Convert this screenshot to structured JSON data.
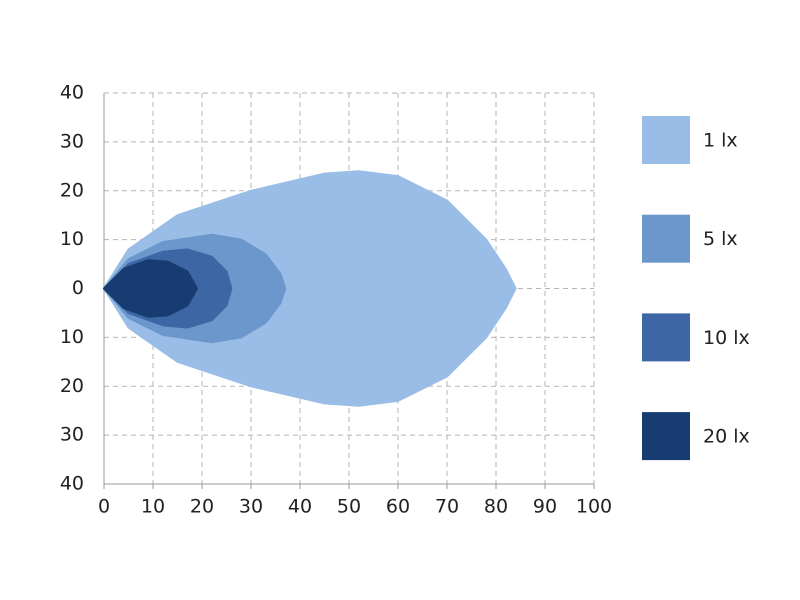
{
  "chart_data": {
    "type": "isolux",
    "xlim": [
      0,
      100
    ],
    "xticks": [
      0,
      10,
      20,
      30,
      40,
      50,
      60,
      70,
      80,
      90,
      100
    ],
    "ylim": [
      -40,
      40
    ],
    "yticks": [
      {
        "value": -40,
        "label": "40"
      },
      {
        "value": -30,
        "label": "30"
      },
      {
        "value": -20,
        "label": "20"
      },
      {
        "value": -10,
        "label": "10"
      },
      0,
      10,
      20,
      30,
      40
    ],
    "grid": true,
    "legend": "right",
    "series": [
      {
        "name": "1 lx",
        "color": "#99bde6",
        "x": [
          0,
          5,
          15,
          30,
          45,
          52,
          60,
          70,
          78,
          82,
          84,
          82,
          78,
          70,
          60,
          52,
          45,
          30,
          15,
          5,
          0
        ],
        "values": [
          0,
          8,
          15,
          20,
          23.5,
          24,
          23,
          18,
          10,
          4,
          0,
          -4,
          -10,
          -18,
          -23,
          -24,
          -23.5,
          -20,
          -15,
          -8,
          0
        ]
      },
      {
        "name": "5 lx",
        "color": "#6b97cc",
        "x": [
          0,
          5,
          12,
          22,
          28,
          33,
          36,
          37,
          36,
          33,
          28,
          22,
          12,
          5,
          0
        ],
        "values": [
          0,
          6,
          9.5,
          11,
          10,
          7,
          3,
          0,
          -3,
          -7,
          -10,
          -11,
          -9.5,
          -6,
          0
        ]
      },
      {
        "name": "10 lx",
        "color": "#3d67a4",
        "x": [
          0,
          5,
          12,
          17,
          22,
          25,
          26,
          25,
          22,
          17,
          12,
          5,
          0
        ],
        "values": [
          0,
          5,
          7.5,
          8,
          6.5,
          3.5,
          0,
          -3.5,
          -6.5,
          -8,
          -7.5,
          -5,
          0
        ]
      },
      {
        "name": "20 lx",
        "color": "#173c72",
        "x": [
          0,
          4,
          9,
          13,
          17,
          19,
          17,
          13,
          9,
          4,
          0
        ],
        "values": [
          0,
          4,
          5.8,
          5.5,
          3.5,
          0,
          -3.5,
          -5.5,
          -5.8,
          -4,
          0
        ]
      }
    ]
  }
}
